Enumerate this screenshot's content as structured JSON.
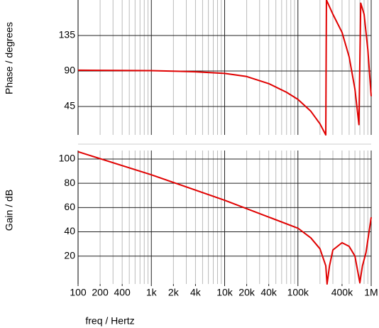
{
  "chart_data": [
    {
      "type": "line",
      "ylabel": "Phase / degrees",
      "x": [
        100,
        1000,
        4000,
        10000,
        20000,
        40000,
        70000,
        100000,
        150000,
        200000,
        240000,
        245000,
        300000,
        400000,
        500000,
        600000,
        680000,
        720000,
        800000,
        900000,
        1000000
      ],
      "series": [
        {
          "color": "#e00000",
          "values": [
            91,
            90.5,
            89,
            87,
            83,
            74,
            63,
            54,
            39,
            23,
            9,
            180,
            162,
            139,
            108,
            67,
            22,
            176,
            162,
            117,
            58
          ]
        }
      ],
      "xlim": [
        100,
        1000000
      ],
      "ylim": [
        9,
        180
      ],
      "yticks": [
        45,
        90,
        135
      ],
      "log_x": true,
      "grid": true
    },
    {
      "type": "line",
      "xlabel": "freq / Hertz",
      "ylabel": "Gain / dB",
      "x": [
        100,
        1000,
        10000,
        100000,
        150000,
        200000,
        240000,
        250000,
        270000,
        300000,
        400000,
        500000,
        600000,
        700000,
        760000,
        850000,
        1000000
      ],
      "series": [
        {
          "color": "#e00000",
          "values": [
            106,
            87,
            66,
            43,
            35,
            26,
            12,
            -3,
            12,
            25,
            31,
            28,
            20,
            -2,
            12,
            23,
            52
          ]
        }
      ],
      "xlim": [
        100,
        1000000
      ],
      "ylim": [
        -3,
        107
      ],
      "yticks": [
        20,
        40,
        60,
        80,
        100
      ],
      "xticks": [
        100,
        200,
        400,
        {
          "value": 1000,
          "label": "1k"
        },
        {
          "value": 2000,
          "label": "2k"
        },
        {
          "value": 4000,
          "label": "4k"
        },
        {
          "value": 10000,
          "label": "10k"
        },
        {
          "value": 20000,
          "label": "20k"
        },
        {
          "value": 40000,
          "label": "40k"
        },
        {
          "value": 100000,
          "label": "100k"
        },
        {
          "value": 400000,
          "label": "400k"
        },
        {
          "value": 1000000,
          "label": "1M"
        }
      ],
      "log_x": true,
      "grid": true
    }
  ]
}
